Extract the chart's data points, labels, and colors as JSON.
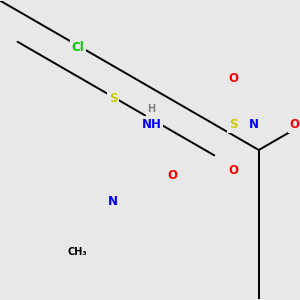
{
  "background_color": "#E8E8E8",
  "bond_color": "#000000",
  "atom_colors": {
    "Cl": "#00CC00",
    "S": "#CCCC00",
    "N": "#0000FF",
    "O": "#FF0000",
    "H": "#808080",
    "C": "#000000"
  },
  "figsize": [
    3.0,
    3.0
  ],
  "dpi": 100
}
